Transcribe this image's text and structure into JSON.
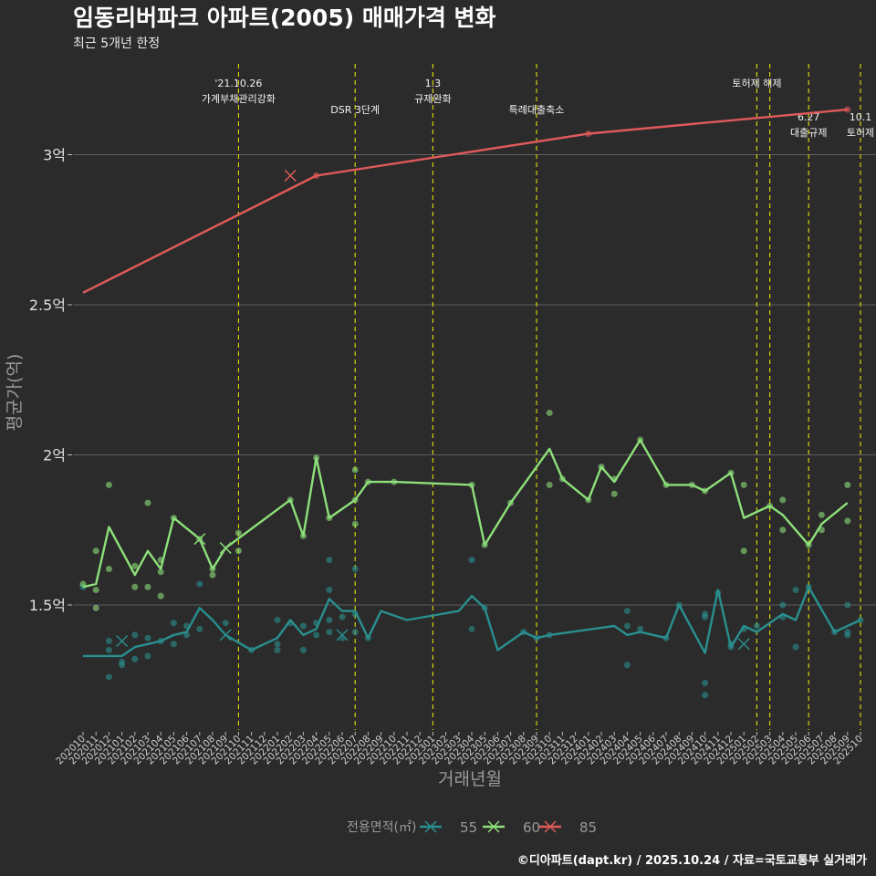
{
  "chart_data": {
    "type": "line",
    "title": "임동리버파크 아파트(2005) 매매가격 변화",
    "subtitle": "최근 5개년 한정",
    "xlabel": "거래년월",
    "ylabel": "평균가(억)",
    "ylim": [
      1.1,
      3.3
    ],
    "yticks": [
      {
        "value": 1.5,
        "label": "1.5억"
      },
      {
        "value": 2.0,
        "label": "2억"
      },
      {
        "value": 2.5,
        "label": "2.5억"
      },
      {
        "value": 3.0,
        "label": "3억"
      }
    ],
    "months": [
      "202010",
      "202011",
      "202012",
      "202101",
      "202102",
      "202103",
      "202104",
      "202105",
      "202106",
      "202107",
      "202108",
      "202109",
      "202110",
      "202111",
      "202112",
      "202201",
      "202202",
      "202203",
      "202204",
      "202205",
      "202206",
      "202207",
      "202208",
      "202209",
      "202210",
      "202211",
      "202212",
      "202301",
      "202302",
      "202303",
      "202304",
      "202305",
      "202306",
      "202307",
      "202308",
      "202309",
      "202310",
      "202311",
      "202312",
      "202401",
      "202402",
      "202403",
      "202404",
      "202405",
      "202406",
      "202407",
      "202408",
      "202409",
      "202410",
      "202411",
      "202412",
      "202501",
      "202502",
      "202503",
      "202504",
      "202505",
      "202506",
      "202507",
      "202508",
      "202509",
      "202510"
    ],
    "legend_title": "전용면적(㎡)",
    "legend_position": "bottom",
    "series": [
      {
        "name": "55",
        "color": "#2a8f8f",
        "line": [
          [
            "202010",
            1.33
          ],
          [
            "202011",
            1.33
          ],
          [
            "202012",
            1.33
          ],
          [
            "202101",
            1.33
          ],
          [
            "202102",
            1.36
          ],
          [
            "202103",
            1.37
          ],
          [
            "202104",
            1.38
          ],
          [
            "202105",
            1.4
          ],
          [
            "202106",
            1.41
          ],
          [
            "202107",
            1.49
          ],
          [
            "202108",
            1.45
          ],
          [
            "202109",
            1.4
          ],
          [
            "202111",
            1.35
          ],
          [
            "202201",
            1.39
          ],
          [
            "202202",
            1.45
          ],
          [
            "202203",
            1.4
          ],
          [
            "202204",
            1.42
          ],
          [
            "202205",
            1.52
          ],
          [
            "202206",
            1.48
          ],
          [
            "202207",
            1.48
          ],
          [
            "202208",
            1.39
          ],
          [
            "202209",
            1.48
          ],
          [
            "202211",
            1.45
          ],
          [
            "202303",
            1.48
          ],
          [
            "202304",
            1.53
          ],
          [
            "202305",
            1.49
          ],
          [
            "202306",
            1.35
          ],
          [
            "202308",
            1.41
          ],
          [
            "202309",
            1.39
          ],
          [
            "202310",
            1.4
          ],
          [
            "202403",
            1.43
          ],
          [
            "202404",
            1.4
          ],
          [
            "202405",
            1.41
          ],
          [
            "202407",
            1.39
          ],
          [
            "202408",
            1.5
          ],
          [
            "202410",
            1.34
          ],
          [
            "202411",
            1.55
          ],
          [
            "202412",
            1.36
          ],
          [
            "202501",
            1.43
          ],
          [
            "202502",
            1.41
          ],
          [
            "202504",
            1.47
          ],
          [
            "202505",
            1.45
          ],
          [
            "202506",
            1.56
          ],
          [
            "202508",
            1.41
          ],
          [
            "202509",
            1.43
          ],
          [
            "202510",
            1.45
          ]
        ],
        "points": [
          [
            "202010",
            1.56
          ],
          [
            "202012",
            1.26
          ],
          [
            "202012",
            1.35
          ],
          [
            "202012",
            1.38
          ],
          [
            "202101",
            1.3
          ],
          [
            "202101",
            1.31
          ],
          [
            "202102",
            1.32
          ],
          [
            "202102",
            1.4
          ],
          [
            "202103",
            1.33
          ],
          [
            "202103",
            1.39
          ],
          [
            "202104",
            1.38
          ],
          [
            "202105",
            1.37
          ],
          [
            "202105",
            1.44
          ],
          [
            "202106",
            1.4
          ],
          [
            "202106",
            1.43
          ],
          [
            "202107",
            1.42
          ],
          [
            "202107",
            1.57
          ],
          [
            "202109",
            1.44
          ],
          [
            "202111",
            1.35
          ],
          [
            "202201",
            1.35
          ],
          [
            "202201",
            1.37
          ],
          [
            "202201",
            1.45
          ],
          [
            "202202",
            1.44
          ],
          [
            "202203",
            1.35
          ],
          [
            "202203",
            1.43
          ],
          [
            "202204",
            1.4
          ],
          [
            "202204",
            1.44
          ],
          [
            "202205",
            1.41
          ],
          [
            "202205",
            1.45
          ],
          [
            "202205",
            1.55
          ],
          [
            "202205",
            1.65
          ],
          [
            "202206",
            1.39
          ],
          [
            "202206",
            1.46
          ],
          [
            "202207",
            1.41
          ],
          [
            "202207",
            1.47
          ],
          [
            "202207",
            1.62
          ],
          [
            "202208",
            1.39
          ],
          [
            "202304",
            1.42
          ],
          [
            "202304",
            1.65
          ],
          [
            "202305",
            1.49
          ],
          [
            "202308",
            1.41
          ],
          [
            "202309",
            1.39
          ],
          [
            "202310",
            1.4
          ],
          [
            "202404",
            1.3
          ],
          [
            "202404",
            1.43
          ],
          [
            "202404",
            1.48
          ],
          [
            "202405",
            1.42
          ],
          [
            "202407",
            1.39
          ],
          [
            "202408",
            1.5
          ],
          [
            "202410",
            1.2
          ],
          [
            "202410",
            1.24
          ],
          [
            "202410",
            1.46
          ],
          [
            "202410",
            1.47
          ],
          [
            "202411",
            1.54
          ],
          [
            "202412",
            1.36
          ],
          [
            "202412",
            1.37
          ],
          [
            "202501",
            1.42
          ],
          [
            "202502",
            1.43
          ],
          [
            "202504",
            1.46
          ],
          [
            "202504",
            1.5
          ],
          [
            "202505",
            1.36
          ],
          [
            "202505",
            1.55
          ],
          [
            "202506",
            1.56
          ],
          [
            "202508",
            1.41
          ],
          [
            "202509",
            1.4
          ],
          [
            "202509",
            1.41
          ],
          [
            "202509",
            1.5
          ],
          [
            "202510",
            1.45
          ]
        ],
        "cancelled": [
          [
            "202101",
            1.38
          ],
          [
            "202109",
            1.4
          ],
          [
            "202206",
            1.4
          ],
          [
            "202501",
            1.37
          ]
        ]
      },
      {
        "name": "60",
        "color": "#8de07a",
        "line": [
          [
            "202010",
            1.56
          ],
          [
            "202011",
            1.57
          ],
          [
            "202012",
            1.76
          ],
          [
            "202102",
            1.6
          ],
          [
            "202103",
            1.68
          ],
          [
            "202104",
            1.62
          ],
          [
            "202105",
            1.79
          ],
          [
            "202107",
            1.72
          ],
          [
            "202108",
            1.62
          ],
          [
            "202109",
            1.69
          ],
          [
            "202202",
            1.85
          ],
          [
            "202203",
            1.73
          ],
          [
            "202204",
            1.99
          ],
          [
            "202205",
            1.79
          ],
          [
            "202207",
            1.85
          ],
          [
            "202208",
            1.91
          ],
          [
            "202210",
            1.91
          ],
          [
            "202304",
            1.9
          ],
          [
            "202305",
            1.7
          ],
          [
            "202307",
            1.84
          ],
          [
            "202310",
            2.02
          ],
          [
            "202311",
            1.92
          ],
          [
            "202401",
            1.85
          ],
          [
            "202402",
            1.96
          ],
          [
            "202403",
            1.91
          ],
          [
            "202405",
            2.05
          ],
          [
            "202407",
            1.9
          ],
          [
            "202409",
            1.9
          ],
          [
            "202410",
            1.88
          ],
          [
            "202412",
            1.94
          ],
          [
            "202501",
            1.79
          ],
          [
            "202503",
            1.83
          ],
          [
            "202504",
            1.8
          ],
          [
            "202506",
            1.7
          ],
          [
            "202507",
            1.77
          ],
          [
            "202509",
            1.84
          ]
        ],
        "points": [
          [
            "202010",
            1.57
          ],
          [
            "202011",
            1.49
          ],
          [
            "202011",
            1.55
          ],
          [
            "202011",
            1.68
          ],
          [
            "202012",
            1.62
          ],
          [
            "202012",
            1.9
          ],
          [
            "202102",
            1.56
          ],
          [
            "202102",
            1.63
          ],
          [
            "202103",
            1.56
          ],
          [
            "202103",
            1.84
          ],
          [
            "202104",
            1.53
          ],
          [
            "202104",
            1.61
          ],
          [
            "202104",
            1.65
          ],
          [
            "202105",
            1.79
          ],
          [
            "202107",
            1.72
          ],
          [
            "202108",
            1.6
          ],
          [
            "202108",
            1.62
          ],
          [
            "202110",
            1.68
          ],
          [
            "202110",
            1.74
          ],
          [
            "202202",
            1.85
          ],
          [
            "202203",
            1.73
          ],
          [
            "202204",
            1.99
          ],
          [
            "202205",
            1.79
          ],
          [
            "202207",
            1.77
          ],
          [
            "202207",
            1.85
          ],
          [
            "202207",
            1.95
          ],
          [
            "202208",
            1.91
          ],
          [
            "202210",
            1.91
          ],
          [
            "202304",
            1.9
          ],
          [
            "202305",
            1.7
          ],
          [
            "202307",
            1.84
          ],
          [
            "202310",
            1.9
          ],
          [
            "202310",
            2.14
          ],
          [
            "202311",
            1.92
          ],
          [
            "202401",
            1.85
          ],
          [
            "202402",
            1.96
          ],
          [
            "202403",
            1.87
          ],
          [
            "202403",
            1.92
          ],
          [
            "202405",
            2.05
          ],
          [
            "202407",
            1.9
          ],
          [
            "202409",
            1.9
          ],
          [
            "202410",
            1.88
          ],
          [
            "202412",
            1.94
          ],
          [
            "202501",
            1.68
          ],
          [
            "202501",
            1.9
          ],
          [
            "202503",
            1.83
          ],
          [
            "202504",
            1.75
          ],
          [
            "202504",
            1.85
          ],
          [
            "202506",
            1.7
          ],
          [
            "202507",
            1.75
          ],
          [
            "202507",
            1.8
          ],
          [
            "202509",
            1.78
          ],
          [
            "202509",
            1.9
          ]
        ],
        "cancelled": [
          [
            "202107",
            1.72
          ],
          [
            "202109",
            1.69
          ]
        ]
      },
      {
        "name": "85",
        "color": "#e05a5a",
        "line": [
          [
            "202010",
            2.54
          ],
          [
            "202204",
            2.93
          ],
          [
            "202401",
            3.07
          ],
          [
            "202509",
            3.15
          ]
        ],
        "points": [
          [
            "202204",
            2.93
          ],
          [
            "202401",
            3.07
          ],
          [
            "202509",
            3.15
          ]
        ],
        "cancelled": [
          [
            "202202",
            2.93
          ]
        ]
      }
    ],
    "events": [
      {
        "month": "202110",
        "labels": [
          "'21.10.26",
          "가계부채관리강화"
        ],
        "level": 0
      },
      {
        "month": "202207",
        "labels": [
          "DSR 3단계"
        ],
        "level": 1
      },
      {
        "month": "202301",
        "labels": [
          "1.3",
          "규제완화"
        ],
        "level": 0
      },
      {
        "month": "202309",
        "labels": [
          "특례대출축소"
        ],
        "level": 1
      },
      {
        "month": "202502",
        "labels": [
          "토허제 해제"
        ],
        "level": 0
      },
      {
        "month": "202503",
        "labels": [],
        "level": 0
      },
      {
        "month": "202506",
        "labels": [
          "6.27",
          "대출규제"
        ],
        "level": 2
      },
      {
        "month": "202510",
        "labels": [
          "10.1",
          "토허제"
        ],
        "level": 2
      }
    ],
    "caption": "©디아파트(dapt.kr) / 2025.10.24 / 자료=국토교통부 실거래가"
  }
}
